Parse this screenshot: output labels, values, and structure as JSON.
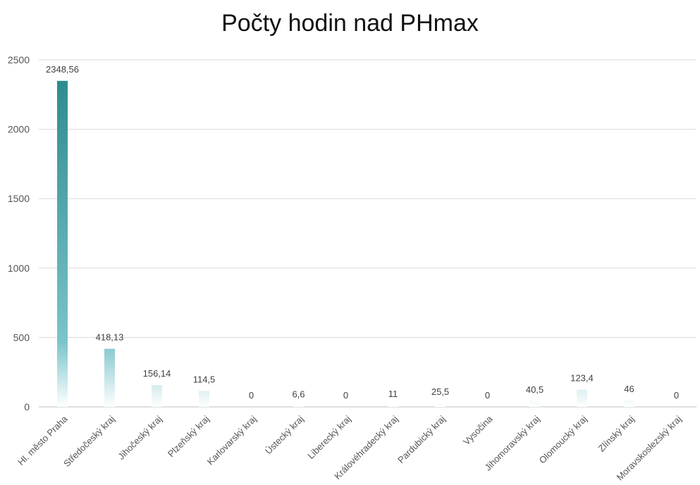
{
  "chart_data": {
    "type": "bar",
    "title": "Počty hodin nad PHmax",
    "xlabel": "",
    "ylabel": "",
    "ylim": [
      0,
      2500
    ],
    "yticks": [
      0,
      500,
      1000,
      1500,
      2000,
      2500
    ],
    "grid": true,
    "legend": "none",
    "categories": [
      "Hl. město Praha",
      "Středočeský kraj",
      "Jihočeský kraj",
      "Plzeňský kraj",
      "Karlovarský kraj",
      "Ústecký kraj",
      "Liberecký kraj",
      "Královéhradecký kraj",
      "Pardubický kraj",
      "Vysočina",
      "Jihomoravský kraj",
      "Olomoucký kraj",
      "Zlínský kraj",
      "Moravskoslezský kraj"
    ],
    "values": [
      2348.56,
      418.13,
      156.14,
      114.5,
      0,
      6.6,
      0,
      11,
      25.5,
      0,
      40.5,
      123.4,
      46,
      0
    ],
    "data_labels": [
      "2348,56",
      "418,13",
      "156,14",
      "114,5",
      "0",
      "6,6",
      "0",
      "11",
      "25,5",
      "0",
      "40,5",
      "123,4",
      "46",
      "0"
    ],
    "colors": {
      "bar_top": "#2e8b8f",
      "bar_mid": "#7ac4cb",
      "bar_bottom": "#ffffff",
      "grid": "#d9d9d9",
      "text": "#555555"
    }
  }
}
